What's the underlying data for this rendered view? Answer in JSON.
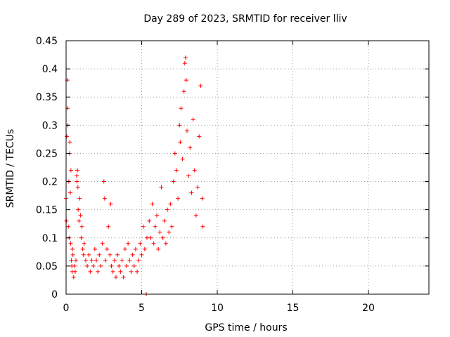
{
  "chart_data": {
    "type": "scatter",
    "title": "Day 289 of 2023, SRMTID for receiver lliv",
    "xlabel": "GPS time / hours",
    "ylabel": "SRMTID / TECUs",
    "xlim": [
      0,
      24
    ],
    "ylim": [
      0,
      0.45
    ],
    "xticks": [
      0,
      5,
      10,
      15,
      20
    ],
    "xtick_labels": [
      "0",
      "5",
      "10",
      "15",
      "20"
    ],
    "yticks": [
      0,
      0.05,
      0.1,
      0.15,
      0.2,
      0.25,
      0.3,
      0.35,
      0.4,
      0.45
    ],
    "ytick_labels": [
      "0",
      "0.05",
      "0.1",
      "0.15",
      "0.2",
      "0.25",
      "0.3",
      "0.35",
      "0.4",
      "0.45"
    ],
    "grid": true,
    "marker": "+",
    "color": "#ff0000",
    "series": [
      {
        "name": "SRMTID",
        "points": [
          [
            0.0,
            0.17
          ],
          [
            0.02,
            0.13
          ],
          [
            0.05,
            0.28
          ],
          [
            0.08,
            0.38
          ],
          [
            0.1,
            0.33
          ],
          [
            0.12,
            0.3
          ],
          [
            0.15,
            0.12
          ],
          [
            0.18,
            0.2
          ],
          [
            0.2,
            0.1
          ],
          [
            0.22,
            0.25
          ],
          [
            0.25,
            0.27
          ],
          [
            0.28,
            0.18
          ],
          [
            0.3,
            0.09
          ],
          [
            0.32,
            0.22
          ],
          [
            0.35,
            0.06
          ],
          [
            0.38,
            0.05
          ],
          [
            0.4,
            0.04
          ],
          [
            0.42,
            0.08
          ],
          [
            0.45,
            0.07
          ],
          [
            0.5,
            0.03
          ],
          [
            0.55,
            0.05
          ],
          [
            0.6,
            0.04
          ],
          [
            0.65,
            0.06
          ],
          [
            0.7,
            0.21
          ],
          [
            0.72,
            0.2
          ],
          [
            0.75,
            0.22
          ],
          [
            0.78,
            0.19
          ],
          [
            0.8,
            0.15
          ],
          [
            0.85,
            0.13
          ],
          [
            0.9,
            0.17
          ],
          [
            0.95,
            0.14
          ],
          [
            1.0,
            0.1
          ],
          [
            1.05,
            0.12
          ],
          [
            1.1,
            0.08
          ],
          [
            1.15,
            0.07
          ],
          [
            1.2,
            0.09
          ],
          [
            1.3,
            0.06
          ],
          [
            1.4,
            0.05
          ],
          [
            1.5,
            0.07
          ],
          [
            1.6,
            0.04
          ],
          [
            1.7,
            0.06
          ],
          [
            1.8,
            0.05
          ],
          [
            1.9,
            0.08
          ],
          [
            2.0,
            0.06
          ],
          [
            2.1,
            0.04
          ],
          [
            2.2,
            0.07
          ],
          [
            2.3,
            0.05
          ],
          [
            2.4,
            0.09
          ],
          [
            2.5,
            0.2
          ],
          [
            2.55,
            0.17
          ],
          [
            2.6,
            0.06
          ],
          [
            2.7,
            0.08
          ],
          [
            2.8,
            0.12
          ],
          [
            2.9,
            0.07
          ],
          [
            2.95,
            0.16
          ],
          [
            3.0,
            0.05
          ],
          [
            3.1,
            0.04
          ],
          [
            3.2,
            0.06
          ],
          [
            3.3,
            0.03
          ],
          [
            3.4,
            0.07
          ],
          [
            3.5,
            0.05
          ],
          [
            3.6,
            0.04
          ],
          [
            3.7,
            0.06
          ],
          [
            3.8,
            0.03
          ],
          [
            3.9,
            0.08
          ],
          [
            4.0,
            0.05
          ],
          [
            4.1,
            0.09
          ],
          [
            4.2,
            0.06
          ],
          [
            4.3,
            0.04
          ],
          [
            4.4,
            0.07
          ],
          [
            4.5,
            0.05
          ],
          [
            4.6,
            0.08
          ],
          [
            4.7,
            0.04
          ],
          [
            4.8,
            0.06
          ],
          [
            4.9,
            0.09
          ],
          [
            5.0,
            0.07
          ],
          [
            5.1,
            0.12
          ],
          [
            5.2,
            0.08
          ],
          [
            5.3,
            0.0
          ],
          [
            5.35,
            0.1
          ],
          [
            5.5,
            0.13
          ],
          [
            5.6,
            0.1
          ],
          [
            5.7,
            0.16
          ],
          [
            5.8,
            0.09
          ],
          [
            5.9,
            0.12
          ],
          [
            6.0,
            0.14
          ],
          [
            6.1,
            0.08
          ],
          [
            6.2,
            0.11
          ],
          [
            6.3,
            0.19
          ],
          [
            6.4,
            0.1
          ],
          [
            6.5,
            0.13
          ],
          [
            6.6,
            0.09
          ],
          [
            6.7,
            0.15
          ],
          [
            6.8,
            0.11
          ],
          [
            6.9,
            0.16
          ],
          [
            7.0,
            0.12
          ],
          [
            7.1,
            0.2
          ],
          [
            7.2,
            0.25
          ],
          [
            7.3,
            0.22
          ],
          [
            7.4,
            0.17
          ],
          [
            7.5,
            0.3
          ],
          [
            7.55,
            0.27
          ],
          [
            7.6,
            0.33
          ],
          [
            7.7,
            0.24
          ],
          [
            7.8,
            0.36
          ],
          [
            7.85,
            0.41
          ],
          [
            7.9,
            0.42
          ],
          [
            7.95,
            0.38
          ],
          [
            8.0,
            0.29
          ],
          [
            8.1,
            0.21
          ],
          [
            8.2,
            0.26
          ],
          [
            8.3,
            0.18
          ],
          [
            8.4,
            0.31
          ],
          [
            8.5,
            0.22
          ],
          [
            8.6,
            0.14
          ],
          [
            8.7,
            0.19
          ],
          [
            8.8,
            0.28
          ],
          [
            8.9,
            0.37
          ],
          [
            9.0,
            0.17
          ],
          [
            9.05,
            0.12
          ]
        ]
      }
    ]
  }
}
